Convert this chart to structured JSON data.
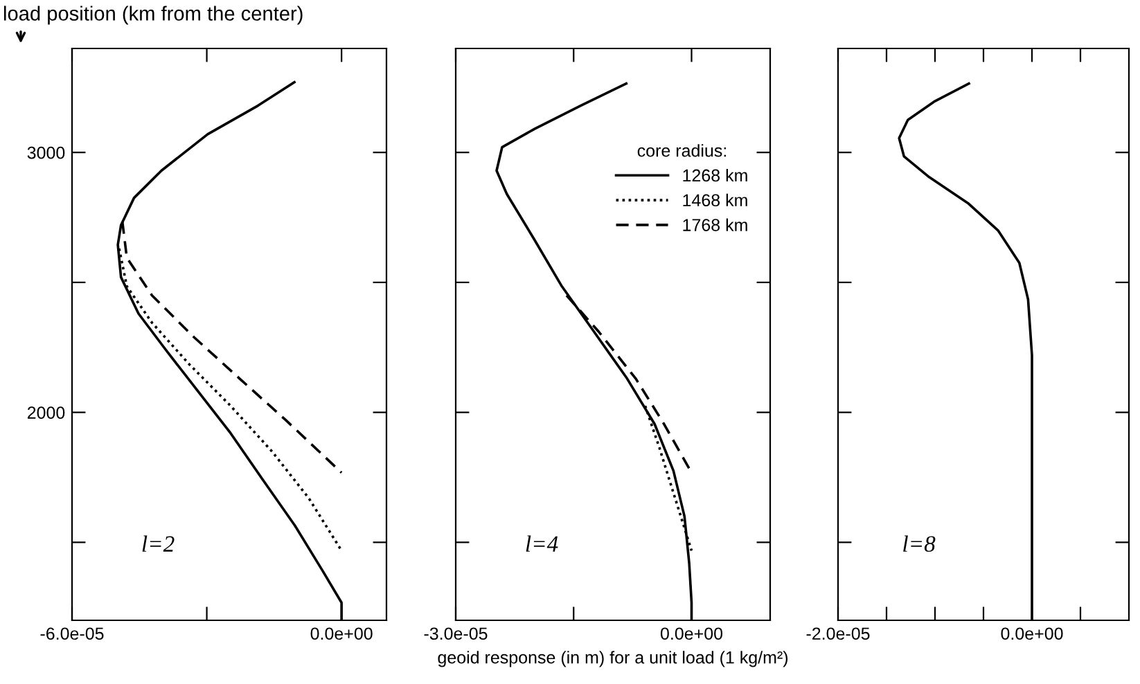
{
  "chart_data": [
    {
      "type": "line",
      "ylabel": "load position (km from the center)",
      "annotations": [
        "l=2"
      ],
      "xlim": [
        -6e-05,
        1e-05
      ],
      "xticks": [
        {
          "value": -6e-05,
          "label": "-6.0e-05"
        },
        {
          "value": -3e-05,
          "label": null
        },
        {
          "value": 0,
          "label": "0.0e+00"
        }
      ],
      "ylim": [
        1200,
        3400
      ],
      "yticks": [
        {
          "value": 1500,
          "label": null
        },
        2000,
        {
          "value": 2500,
          "label": null
        },
        3000
      ],
      "grid": false,
      "legend": false,
      "series": [
        {
          "color": "#000000",
          "line_style": "solid",
          "x": [
            -1.05e-05,
            -1.86e-05,
            -2.98e-05,
            -4.01e-05,
            -4.62e-05,
            -4.91e-05,
            -4.98e-05,
            -4.91e-05,
            -4.52e-05,
            -3.91e-05,
            -3.19e-05,
            -2.47e-05,
            -1.75e-05,
            -1.04e-05,
            -4.2e-06,
            0,
            0
          ],
          "values": [
            3270,
            3180,
            3070,
            2930,
            2825,
            2720,
            2645,
            2520,
            2380,
            2240,
            2080,
            1920,
            1740,
            1565,
            1390,
            1268,
            1200
          ]
        },
        {
          "color": "#000000",
          "line_style": "dotted",
          "x": [
            -4.95e-05,
            -4.78e-05,
            -4.22e-05,
            -3.39e-05,
            -2.47e-05,
            -1.55e-05,
            -7.3e-06,
            0
          ],
          "values": [
            2630,
            2485,
            2345,
            2185,
            2025,
            1850,
            1670,
            1468
          ]
        },
        {
          "color": "#000000",
          "line_style": "dashed",
          "x": [
            -4.88e-05,
            -4.78e-05,
            -4.22e-05,
            -3.29e-05,
            -2.27e-05,
            -1.24e-05,
            0
          ],
          "values": [
            2735,
            2595,
            2450,
            2290,
            2130,
            1970,
            1768
          ]
        }
      ]
    },
    {
      "type": "line",
      "xlabel": "geoid response (in m) for a unit load (1 kg/m²)",
      "annotations": [
        "l=4"
      ],
      "legend_title": "core radius:",
      "legend": "top right",
      "xlim": [
        -3e-05,
        1e-05
      ],
      "xticks": [
        {
          "value": -3e-05,
          "label": "-3.0e-05"
        },
        {
          "value": -1.5e-05,
          "label": null
        },
        {
          "value": 0,
          "label": "0.0e+00"
        }
      ],
      "ylim": [
        1200,
        3400
      ],
      "yticks": [
        {
          "value": 1500,
          "label": null
        },
        {
          "value": 2000,
          "label": null
        },
        {
          "value": 2500,
          "label": null
        },
        {
          "value": 3000,
          "label": null
        }
      ],
      "tick_labels": "x",
      "grid": false,
      "series": [
        {
          "name": "1268 km",
          "color": "#000000",
          "line_style": "solid",
          "x": [
            -8.3e-06,
            -1.41e-05,
            -2e-05,
            -2.41e-05,
            -2.48e-05,
            -2.35e-05,
            -2e-05,
            -1.65e-05,
            -1.24e-05,
            -8.2e-06,
            -4.7e-06,
            -2.3e-06,
            -9e-07,
            -3e-07,
            0,
            0
          ],
          "values": [
            3265,
            3180,
            3090,
            3020,
            2930,
            2840,
            2665,
            2485,
            2310,
            2130,
            1955,
            1775,
            1600,
            1420,
            1268,
            1200
          ]
        },
        {
          "name": "1468 km",
          "color": "#000000",
          "line_style": "dotted",
          "x": [
            -5.9e-06,
            -4.1e-06,
            -2.3e-06,
            0
          ],
          "values": [
            2025,
            1865,
            1690,
            1468
          ]
        },
        {
          "name": "1768 km",
          "color": "#000000",
          "line_style": "dashed",
          "x": [
            -1.59e-05,
            -1.18e-05,
            -7.1e-06,
            -3.5e-06,
            0
          ],
          "values": [
            2450,
            2310,
            2130,
            1955,
            1768
          ]
        }
      ]
    },
    {
      "type": "line",
      "annotations": [
        "l=8"
      ],
      "xlim": [
        -2e-05,
        1e-05
      ],
      "xticks": [
        {
          "value": -2e-05,
          "label": "-2.0e-05"
        },
        {
          "value": -1.5e-05,
          "label": null
        },
        {
          "value": -1e-05,
          "label": null
        },
        {
          "value": -5e-06,
          "label": null
        },
        {
          "value": 0,
          "label": "0.0e+00"
        },
        {
          "value": 5e-06,
          "label": null
        }
      ],
      "ylim": [
        1200,
        3400
      ],
      "yticks": [
        {
          "value": 1500,
          "label": null
        },
        {
          "value": 2000,
          "label": null
        },
        {
          "value": 2500,
          "label": null
        },
        {
          "value": 3000,
          "label": null
        }
      ],
      "tick_labels": "x",
      "grid": false,
      "legend": false,
      "series": [
        {
          "color": "#000000",
          "line_style": "solid",
          "x": [
            -6.5e-06,
            -1.01e-05,
            -1.28e-05,
            -1.37e-05,
            -1.32e-05,
            -1.06e-05,
            -6.6e-06,
            -3.5e-06,
            -1.3e-06,
            -4e-07,
            0,
            0
          ],
          "values": [
            3265,
            3195,
            3125,
            3055,
            2985,
            2905,
            2805,
            2700,
            2575,
            2435,
            2220,
            1200
          ]
        }
      ]
    }
  ]
}
